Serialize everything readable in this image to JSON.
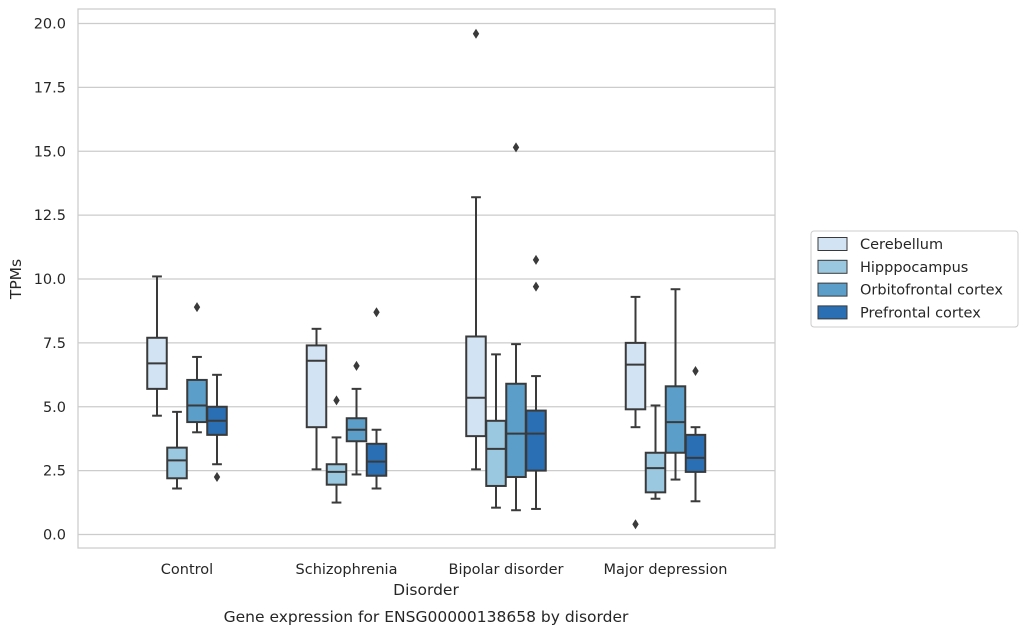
{
  "chart_data": {
    "type": "box",
    "title": "",
    "caption": "Gene expression for ENSG00000138658 by disorder",
    "xlabel": "Disorder",
    "ylabel": "TPMs",
    "ylim": [
      -0.5,
      20.5
    ],
    "yticks": [
      0.0,
      2.5,
      5.0,
      7.5,
      10.0,
      12.5,
      15.0,
      17.5,
      20.0
    ],
    "ytick_labels": [
      "0.0",
      "2.5",
      "5.0",
      "7.5",
      "10.0",
      "12.5",
      "15.0",
      "17.5",
      "20.0"
    ],
    "categories": [
      "Control",
      "Schizophrenia",
      "Bipolar disorder",
      "Major depression"
    ],
    "grid": "horizontal",
    "legend_position": "right",
    "series": [
      {
        "name": "Cerebellum",
        "color": "#d2e3f3",
        "boxes": [
          {
            "whislo": 4.65,
            "q1": 5.7,
            "med": 6.7,
            "q3": 7.7,
            "whishi": 10.1,
            "fliers": []
          },
          {
            "whislo": 2.55,
            "q1": 4.2,
            "med": 6.8,
            "q3": 7.4,
            "whishi": 8.05,
            "fliers": []
          },
          {
            "whislo": 2.55,
            "q1": 3.85,
            "med": 5.35,
            "q3": 7.75,
            "whishi": 13.2,
            "fliers": [
              19.6
            ]
          },
          {
            "whislo": 4.2,
            "q1": 4.9,
            "med": 6.65,
            "q3": 7.5,
            "whishi": 9.3,
            "fliers": [
              0.4
            ]
          }
        ]
      },
      {
        "name": "Hipppocampus",
        "color": "#9ac8e0",
        "boxes": [
          {
            "whislo": 1.8,
            "q1": 2.2,
            "med": 2.9,
            "q3": 3.4,
            "whishi": 4.8,
            "fliers": []
          },
          {
            "whislo": 1.25,
            "q1": 1.95,
            "med": 2.45,
            "q3": 2.75,
            "whishi": 3.8,
            "fliers": [
              5.25
            ]
          },
          {
            "whislo": 1.05,
            "q1": 1.9,
            "med": 3.35,
            "q3": 4.45,
            "whishi": 7.05,
            "fliers": []
          },
          {
            "whislo": 1.4,
            "q1": 1.65,
            "med": 2.6,
            "q3": 3.2,
            "whishi": 5.05,
            "fliers": []
          }
        ]
      },
      {
        "name": "Orbitofrontal cortex",
        "color": "#5a9ec9",
        "boxes": [
          {
            "whislo": 4.0,
            "q1": 4.4,
            "med": 5.05,
            "q3": 6.05,
            "whishi": 6.95,
            "fliers": [
              8.9
            ]
          },
          {
            "whislo": 2.35,
            "q1": 3.65,
            "med": 4.1,
            "q3": 4.55,
            "whishi": 5.7,
            "fliers": [
              6.6
            ]
          },
          {
            "whislo": 0.95,
            "q1": 2.25,
            "med": 3.95,
            "q3": 5.9,
            "whishi": 7.45,
            "fliers": [
              15.15
            ]
          },
          {
            "whislo": 2.15,
            "q1": 3.2,
            "med": 4.4,
            "q3": 5.8,
            "whishi": 9.6,
            "fliers": []
          }
        ]
      },
      {
        "name": "Prefrontal cortex",
        "color": "#2a6fb4",
        "boxes": [
          {
            "whislo": 2.75,
            "q1": 3.9,
            "med": 4.45,
            "q3": 5.0,
            "whishi": 6.25,
            "fliers": [
              2.25
            ]
          },
          {
            "whislo": 1.8,
            "q1": 2.3,
            "med": 2.85,
            "q3": 3.55,
            "whishi": 4.1,
            "fliers": [
              8.7
            ]
          },
          {
            "whislo": 1.0,
            "q1": 2.5,
            "med": 3.95,
            "q3": 4.85,
            "whishi": 6.2,
            "fliers": [
              9.7,
              10.75
            ]
          },
          {
            "whislo": 1.3,
            "q1": 2.45,
            "med": 3.0,
            "q3": 3.9,
            "whishi": 4.2,
            "fliers": [
              6.4
            ]
          }
        ]
      }
    ]
  }
}
